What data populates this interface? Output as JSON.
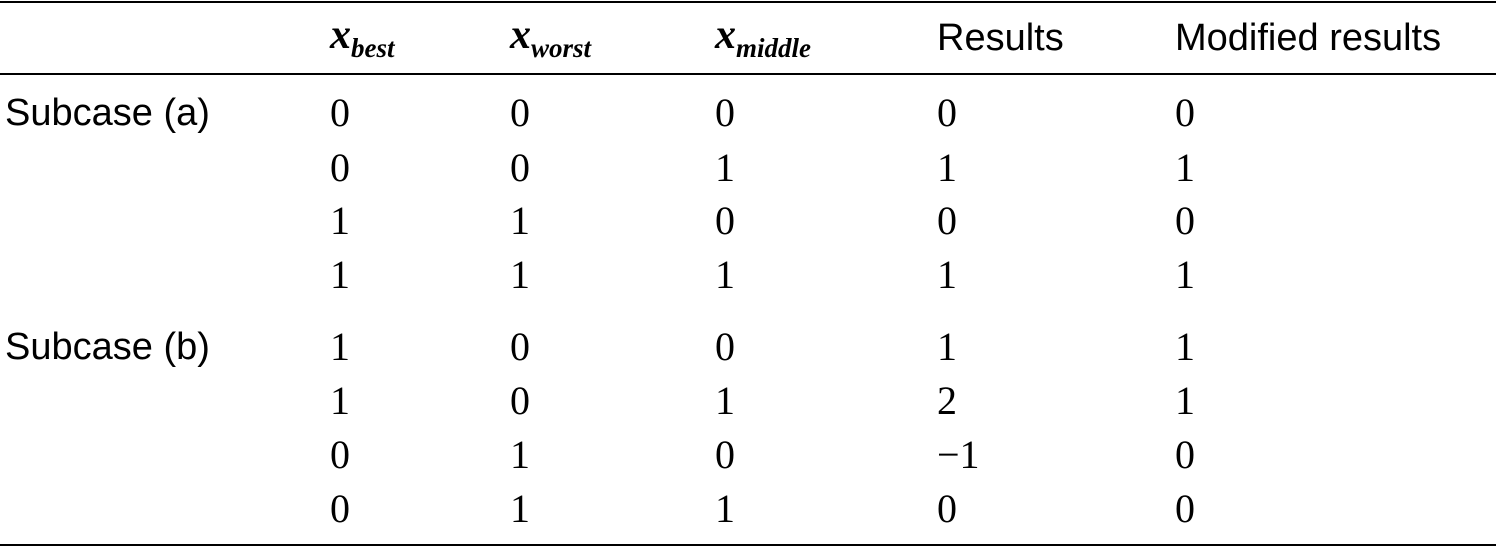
{
  "table": {
    "columns": [
      {
        "base": "x",
        "sub": "best"
      },
      {
        "base": "x",
        "sub": "worst"
      },
      {
        "base": "x",
        "sub": "middle"
      },
      {
        "text": "Results"
      },
      {
        "text": "Modified results"
      }
    ],
    "groups": [
      {
        "label": "Subcase (a)",
        "rows": [
          [
            "0",
            "0",
            "0",
            "0",
            "0"
          ],
          [
            "0",
            "0",
            "1",
            "1",
            "1"
          ],
          [
            "1",
            "1",
            "0",
            "0",
            "0"
          ],
          [
            "1",
            "1",
            "1",
            "1",
            "1"
          ]
        ]
      },
      {
        "label": "Subcase (b)",
        "rows": [
          [
            "1",
            "0",
            "0",
            "1",
            "1"
          ],
          [
            "1",
            "0",
            "1",
            "2",
            "1"
          ],
          [
            "0",
            "1",
            "0",
            "−1",
            "0"
          ],
          [
            "0",
            "1",
            "1",
            "0",
            "0"
          ]
        ]
      }
    ]
  }
}
